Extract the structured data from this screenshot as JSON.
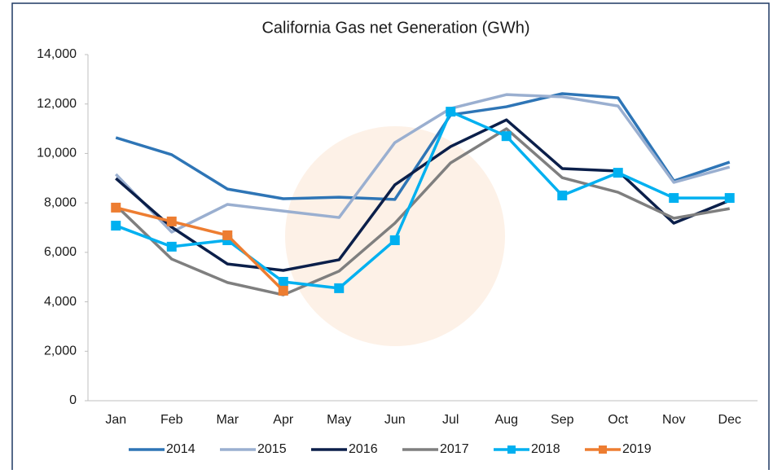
{
  "chart_data": {
    "type": "line",
    "title": "California Gas net Generation (GWh)",
    "categories": [
      "Jan",
      "Feb",
      "Mar",
      "Apr",
      "May",
      "Jun",
      "Jul",
      "Aug",
      "Sep",
      "Oct",
      "Nov",
      "Dec"
    ],
    "series": [
      {
        "name": "2014",
        "color": "#2e75b6",
        "values": [
          10640,
          9950,
          8560,
          8170,
          8230,
          8140,
          11560,
          11890,
          12420,
          12250,
          8890,
          9650
        ]
      },
      {
        "name": "2015",
        "color": "#9aafd0",
        "values": [
          9160,
          6820,
          7940,
          7670,
          7410,
          10440,
          11820,
          12380,
          12290,
          11920,
          8830,
          9450
        ]
      },
      {
        "name": "2016",
        "color": "#0b1f4a",
        "values": [
          8990,
          7020,
          5530,
          5270,
          5700,
          8730,
          10280,
          11360,
          9390,
          9290,
          7180,
          8100
        ]
      },
      {
        "name": "2017",
        "color": "#7f7f7f",
        "values": [
          7900,
          5730,
          4780,
          4280,
          5240,
          7180,
          9620,
          11000,
          9020,
          8430,
          7380,
          7770
        ]
      },
      {
        "name": "2018",
        "color": "#00b0f0",
        "marker": "square",
        "values": [
          7080,
          6230,
          6490,
          4810,
          4550,
          6490,
          11690,
          10700,
          8300,
          9220,
          8200,
          8200
        ]
      },
      {
        "name": "2019",
        "color": "#ed7d31",
        "marker": "square",
        "values": [
          7810,
          7250,
          6690,
          4450,
          null,
          null,
          null,
          null,
          null,
          null,
          null,
          null
        ]
      }
    ],
    "ylim": [
      0,
      14000
    ],
    "yticks": [
      0,
      {
        "value": 2000,
        "label": "2,000"
      },
      {
        "value": 4000,
        "label": "4,000"
      },
      {
        "value": 6000,
        "label": "6,000"
      },
      {
        "value": 8000,
        "label": "8,000"
      },
      {
        "value": 10000,
        "label": "10,000"
      },
      {
        "value": 12000,
        "label": "12,000"
      },
      {
        "value": 14000,
        "label": "14,000"
      }
    ],
    "grid": false,
    "legend": "bottom"
  }
}
